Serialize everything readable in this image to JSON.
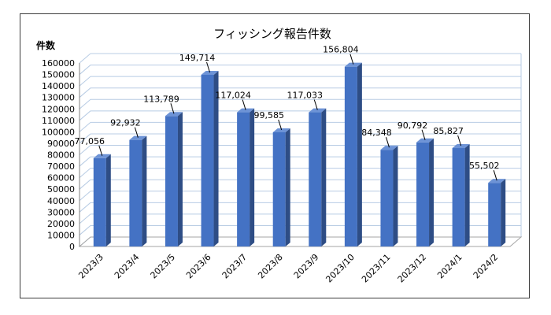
{
  "chart_data": {
    "type": "bar",
    "title": "フィッシング報告件数",
    "ylabel": "件数",
    "xlabel": "",
    "categories": [
      "2023/3",
      "2023/4",
      "2023/5",
      "2023/6",
      "2023/7",
      "2023/8",
      "2023/9",
      "2023/10",
      "2023/11",
      "2023/12",
      "2024/1",
      "2024/2"
    ],
    "values": [
      77056,
      92932,
      113789,
      149714,
      117024,
      99585,
      117033,
      156804,
      84348,
      90792,
      85827,
      55502
    ],
    "data_labels": [
      "77,056",
      "92,932",
      "113,789",
      "149,714",
      "117,024",
      "99,585",
      "117,033",
      "156,804",
      "84,348",
      "90,792",
      "85,827",
      "55,502"
    ],
    "ylim": [
      0,
      160000
    ],
    "yticks": [
      0,
      10000,
      20000,
      30000,
      40000,
      50000,
      60000,
      70000,
      80000,
      90000,
      100000,
      110000,
      120000,
      130000,
      140000,
      150000,
      160000
    ],
    "grid": true,
    "legend": "none",
    "style": "3d-column",
    "colors": {
      "bar_front": "#4472c4",
      "bar_side": "#2e4d85",
      "bar_top": "#6d93d6",
      "grid": "#b8cce4"
    }
  }
}
